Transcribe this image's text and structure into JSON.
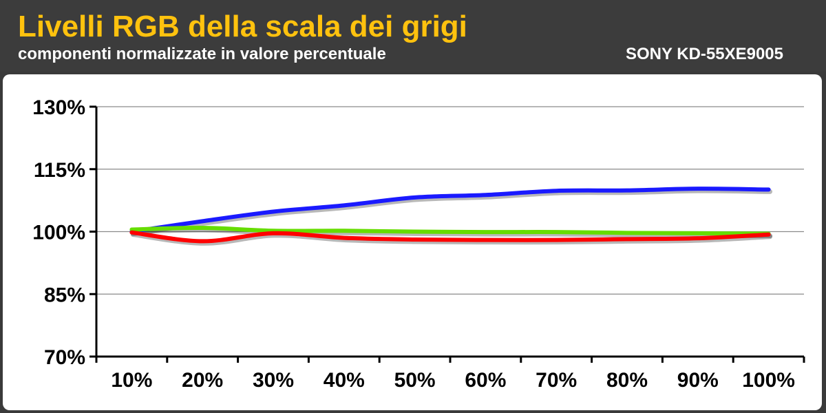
{
  "header": {
    "title": "Livelli RGB della scala dei grigi",
    "subtitle": "componenti normalizzate in valore percentuale",
    "model": "SONY KD-55XE9005"
  },
  "colors": {
    "header_bg": "#3c3c3c",
    "title": "#ffc20e",
    "blue": "#1a1aff",
    "green": "#66dd00",
    "red": "#ff0000"
  },
  "chart_data": {
    "type": "line",
    "title": "Livelli RGB della scala dei grigi",
    "subtitle": "componenti normalizzate in valore percentuale",
    "categories": [
      "10%",
      "20%",
      "30%",
      "40%",
      "50%",
      "60%",
      "70%",
      "80%",
      "90%",
      "100%"
    ],
    "ylim": [
      70,
      130
    ],
    "yticks": [
      70,
      85,
      100,
      115,
      130
    ],
    "ytick_labels": [
      "70%",
      "85%",
      "100%",
      "115%",
      "130%"
    ],
    "grid": true,
    "series": [
      {
        "color": "#1a1aff",
        "values": [
          100.0,
          102.5,
          104.8,
          106.3,
          108.2,
          108.8,
          109.8,
          109.9,
          110.3,
          110.1
        ]
      },
      {
        "color": "#66dd00",
        "values": [
          100.5,
          100.9,
          100.2,
          100.2,
          100.0,
          99.9,
          99.9,
          99.7,
          99.6,
          99.5
        ]
      },
      {
        "color": "#ff0000",
        "values": [
          99.8,
          97.7,
          99.6,
          98.5,
          98.1,
          98.0,
          98.0,
          98.2,
          98.4,
          99.3
        ]
      }
    ]
  }
}
